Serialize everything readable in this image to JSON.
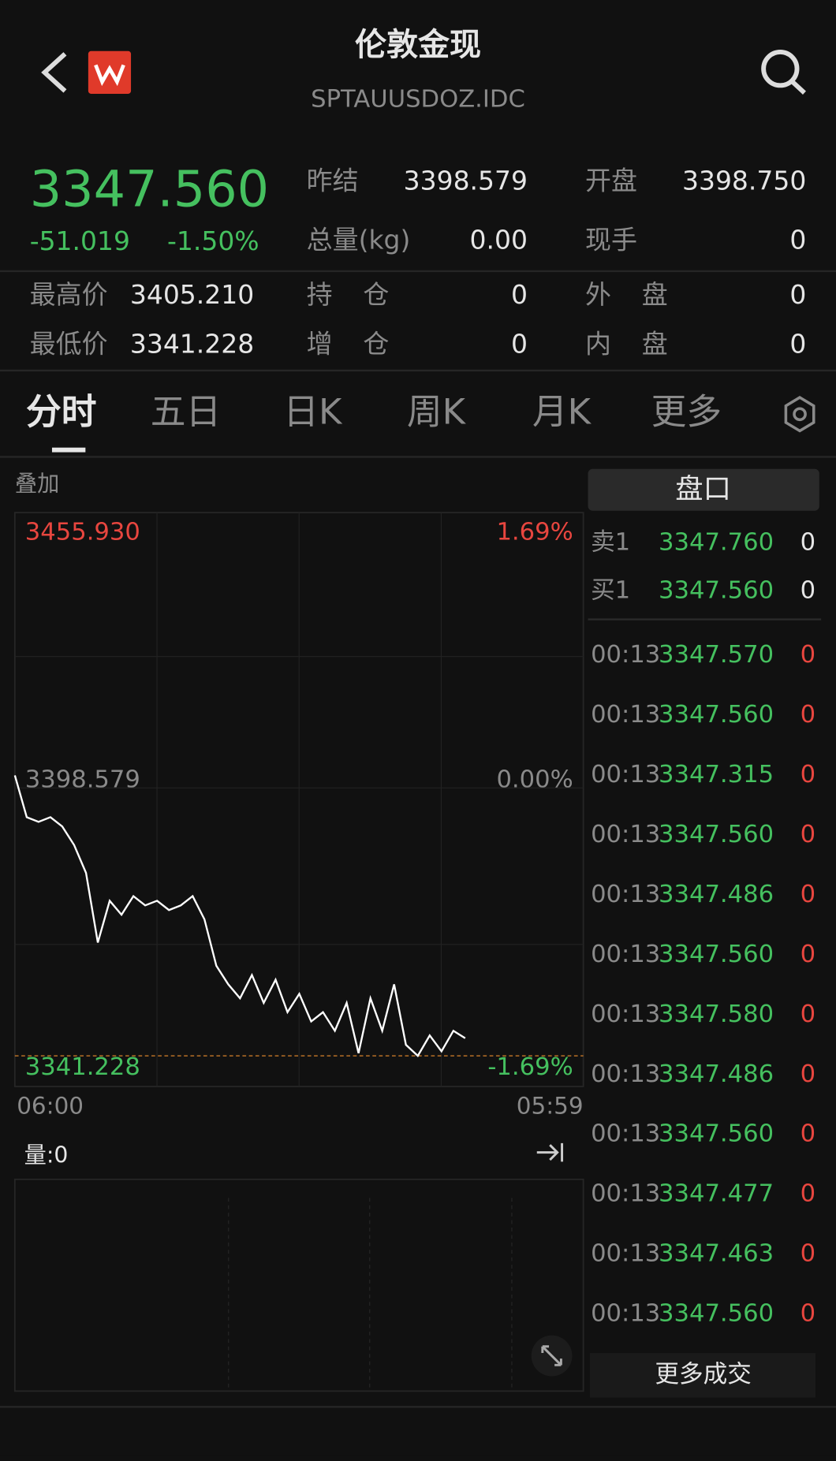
{
  "header": {
    "title": "伦敦金现",
    "subtitle": "SPTAUUSDOZ.IDC"
  },
  "quote": {
    "price": "3347.560",
    "change": "-51.019",
    "change_pct": "-1.50%",
    "stats": [
      [
        "昨结",
        "3398.579"
      ],
      [
        "开盘",
        "3398.750"
      ],
      [
        "总量(kg)",
        "0.00"
      ],
      [
        "现手",
        "0"
      ],
      [
        "最高价",
        "3405.210"
      ],
      [
        "持 仓",
        "0"
      ],
      [
        "外 盘",
        "0"
      ],
      [
        "最低价",
        "3341.228"
      ],
      [
        "增 仓",
        "0"
      ],
      [
        "内 盘",
        "0"
      ]
    ]
  },
  "tabs": [
    "分时",
    "五日",
    "日K",
    "周K",
    "月K",
    "更多"
  ],
  "overlay_label": "叠加",
  "chart_data": {
    "type": "line",
    "color": "#ffffff",
    "ylim": [
      3341.228,
      3455.93
    ],
    "yticks": [
      {
        "value": 3455.93,
        "label": "3455.930"
      },
      {
        "value": 3398.579,
        "label": "3398.579"
      },
      {
        "value": 3341.228,
        "label": "3341.228"
      }
    ],
    "pct_labels": [
      "1.69%",
      "0.00%",
      "-1.69%"
    ],
    "x_labels": [
      "06:00",
      "05:59"
    ],
    "x": [
      "06:00",
      "06:30",
      "07:00",
      "07:30",
      "08:00",
      "08:30",
      "09:00",
      "09:30",
      "10:00",
      "10:30",
      "11:00",
      "11:30",
      "12:00",
      "12:30",
      "13:00",
      "13:30",
      "14:00",
      "14:30",
      "15:00",
      "15:30",
      "16:00",
      "16:30",
      "17:00",
      "17:30",
      "18:00",
      "18:30",
      "19:00",
      "19:30",
      "20:00",
      "20:30",
      "21:00",
      "21:30",
      "22:00",
      "22:30",
      "23:00",
      "23:30",
      "00:00",
      "00:30",
      "01:00"
    ],
    "values": [
      3401.26,
      3392.31,
      3391.32,
      3392.31,
      3390.33,
      3386.35,
      3380.39,
      3365.48,
      3374.42,
      3371.44,
      3375.42,
      3373.43,
      3374.42,
      3372.43,
      3373.43,
      3375.42,
      3370.45,
      3360.51,
      3356.53,
      3353.55,
      3358.52,
      3352.55,
      3357.52,
      3350.57,
      3354.5,
      3348.58,
      3350.57,
      3346.6,
      3352.55,
      3341.8,
      3353.55,
      3346.6,
      3356.53,
      3343.6,
      3341.23,
      3345.6,
      3342.2,
      3346.6,
      3345.0
    ],
    "volume_label": "量:0"
  },
  "order_book": {
    "title": "盘口",
    "quotes": [
      [
        "卖1",
        "3347.760",
        "0"
      ],
      [
        "买1",
        "3347.560",
        "0"
      ]
    ],
    "trades": [
      [
        "00:13",
        "3347.570",
        "0"
      ],
      [
        "00:13",
        "3347.560",
        "0"
      ],
      [
        "00:13",
        "3347.315",
        "0"
      ],
      [
        "00:13",
        "3347.560",
        "0"
      ],
      [
        "00:13",
        "3347.486",
        "0"
      ],
      [
        "00:13",
        "3347.560",
        "0"
      ],
      [
        "00:13",
        "3347.580",
        "0"
      ],
      [
        "00:13",
        "3347.486",
        "0"
      ],
      [
        "00:13",
        "3347.560",
        "0"
      ],
      [
        "00:13",
        "3347.477",
        "0"
      ],
      [
        "00:13",
        "3347.463",
        "0"
      ],
      [
        "00:13",
        "3347.560",
        "0"
      ]
    ],
    "more": "更多成交"
  }
}
